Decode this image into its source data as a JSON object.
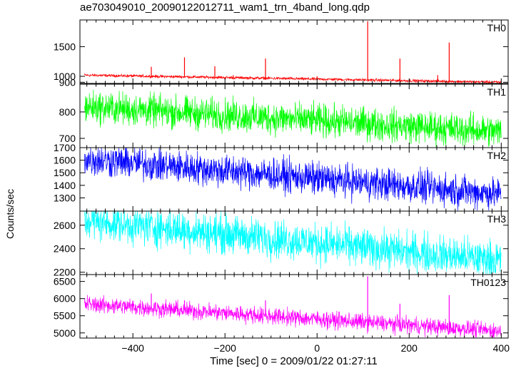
{
  "title": "ae703049010_20090122012711_wam1_trn_4band_long.qdp",
  "chart_data": {
    "type": "line",
    "title": "ae703049010_20090122012711_wam1_trn_4band_long.qdp",
    "xlabel": "Time [sec] 0 = 2009/01/22 01:27:11",
    "ylabel": "Counts/sec",
    "xlim": [
      -515,
      415
    ],
    "x_ticks": [
      -400,
      -200,
      0,
      200,
      400
    ],
    "grid": false,
    "legend": "none",
    "panels": [
      {
        "name": "TH0",
        "color": "#ff0000",
        "ylim": [
          880,
          1950
        ],
        "y_ticks": [
          900,
          1000,
          1500
        ],
        "trend": [
          [
            -505,
            1020
          ],
          [
            400,
            900
          ]
        ],
        "noise": 30,
        "spikes": [
          [
            -395,
            1000
          ],
          [
            -360,
            1160
          ],
          [
            -288,
            1320
          ],
          [
            -222,
            1170
          ],
          [
            -182,
            1020
          ],
          [
            -112,
            1300
          ],
          [
            0,
            1000
          ],
          [
            110,
            1930
          ],
          [
            180,
            1300
          ],
          [
            262,
            1020
          ],
          [
            287,
            1570
          ]
        ]
      },
      {
        "name": "TH1",
        "color": "#00ff00",
        "ylim": [
          665,
          905
        ],
        "y_ticks": [
          700,
          800
        ],
        "trend": [
          [
            -505,
            820
          ],
          [
            400,
            725
          ]
        ],
        "noise": 75
      },
      {
        "name": "TH2",
        "color": "#0000ff",
        "ylim": [
          1195,
          1700
        ],
        "y_ticks": [
          1300,
          1400,
          1500,
          1600,
          1700
        ],
        "trend": [
          [
            -505,
            1610
          ],
          [
            400,
            1330
          ]
        ],
        "noise": 160
      },
      {
        "name": "TH3",
        "color": "#00ffff",
        "ylim": [
          2180,
          2720
        ],
        "y_ticks": [
          2200,
          2400,
          2600
        ],
        "trend": [
          [
            -505,
            2640
          ],
          [
            400,
            2300
          ]
        ],
        "noise": 200
      },
      {
        "name": "TH0123",
        "color": "#ff00ff",
        "ylim": [
          4850,
          6700
        ],
        "y_ticks": [
          5000,
          5500,
          6000,
          6500
        ],
        "trend": [
          [
            -505,
            5850
          ],
          [
            400,
            5050
          ]
        ],
        "noise": 300,
        "spikes": [
          [
            -360,
            6150
          ],
          [
            -288,
            5950
          ],
          [
            -112,
            5950
          ],
          [
            110,
            6650
          ],
          [
            180,
            5850
          ],
          [
            287,
            6100
          ]
        ]
      }
    ]
  }
}
